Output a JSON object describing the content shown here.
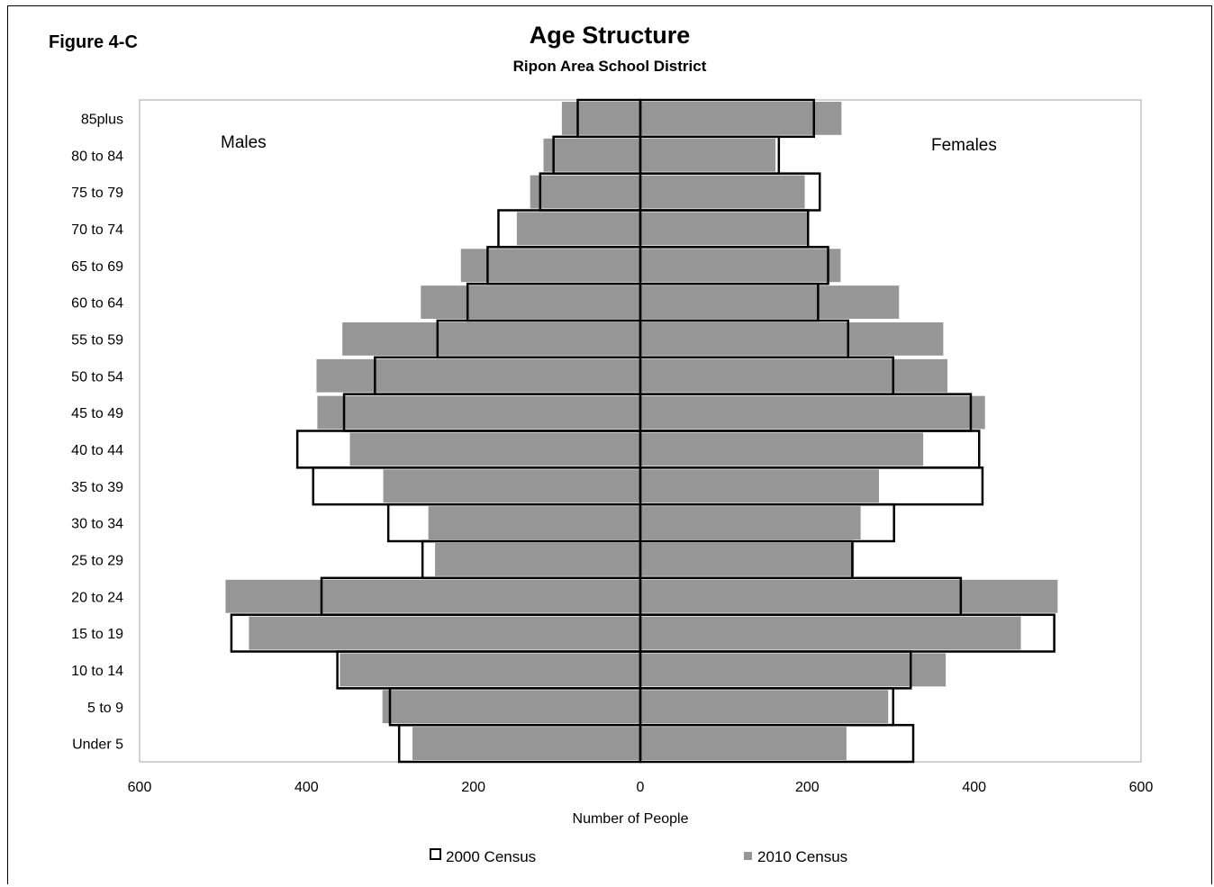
{
  "figure_label": "Figure 4-C",
  "chart_data": {
    "type": "bar",
    "orientation": "horizontal-population-pyramid",
    "title": "Age Structure",
    "subtitle": "Ripon Area School District",
    "xlabel": "Number of People",
    "xlim": [
      -600,
      600
    ],
    "x_ticks": [
      -600,
      -400,
      -200,
      0,
      200,
      400,
      600
    ],
    "x_tick_labels": [
      "600",
      "400",
      "200",
      "0",
      "200",
      "400",
      "600"
    ],
    "side_labels": {
      "left": "Males",
      "right": "Females"
    },
    "categories": [
      "Under 5",
      "5 to 9",
      "10 to 14",
      "15 to 19",
      "20 to 24",
      "25 to 29",
      "30 to 34",
      "35 to 39",
      "40 to 44",
      "45 to 49",
      "50 to 54",
      "55 to 59",
      "60 to 64",
      "65 to 69",
      "70 to 74",
      "75 to 79",
      "80 to 84",
      "85plus"
    ],
    "series": [
      {
        "name": "2000 Census",
        "style": "outline",
        "color": "#000000",
        "males": [
          289,
          300,
          363,
          490,
          382,
          261,
          302,
          392,
          411,
          355,
          318,
          243,
          207,
          183,
          170,
          120,
          104,
          75
        ],
        "females": [
          327,
          303,
          324,
          496,
          384,
          254,
          304,
          410,
          406,
          396,
          303,
          249,
          213,
          225,
          201,
          215,
          166,
          208
        ]
      },
      {
        "name": "2010 Census",
        "style": "filled",
        "color": "#969696",
        "males": [
          273,
          309,
          360,
          469,
          497,
          246,
          254,
          308,
          348,
          387,
          388,
          357,
          263,
          215,
          148,
          132,
          116,
          94
        ],
        "females": [
          247,
          297,
          366,
          456,
          500,
          256,
          264,
          286,
          339,
          413,
          368,
          363,
          310,
          240,
          200,
          197,
          162,
          241
        ]
      }
    ],
    "legend_position": "bottom",
    "grid": false
  }
}
